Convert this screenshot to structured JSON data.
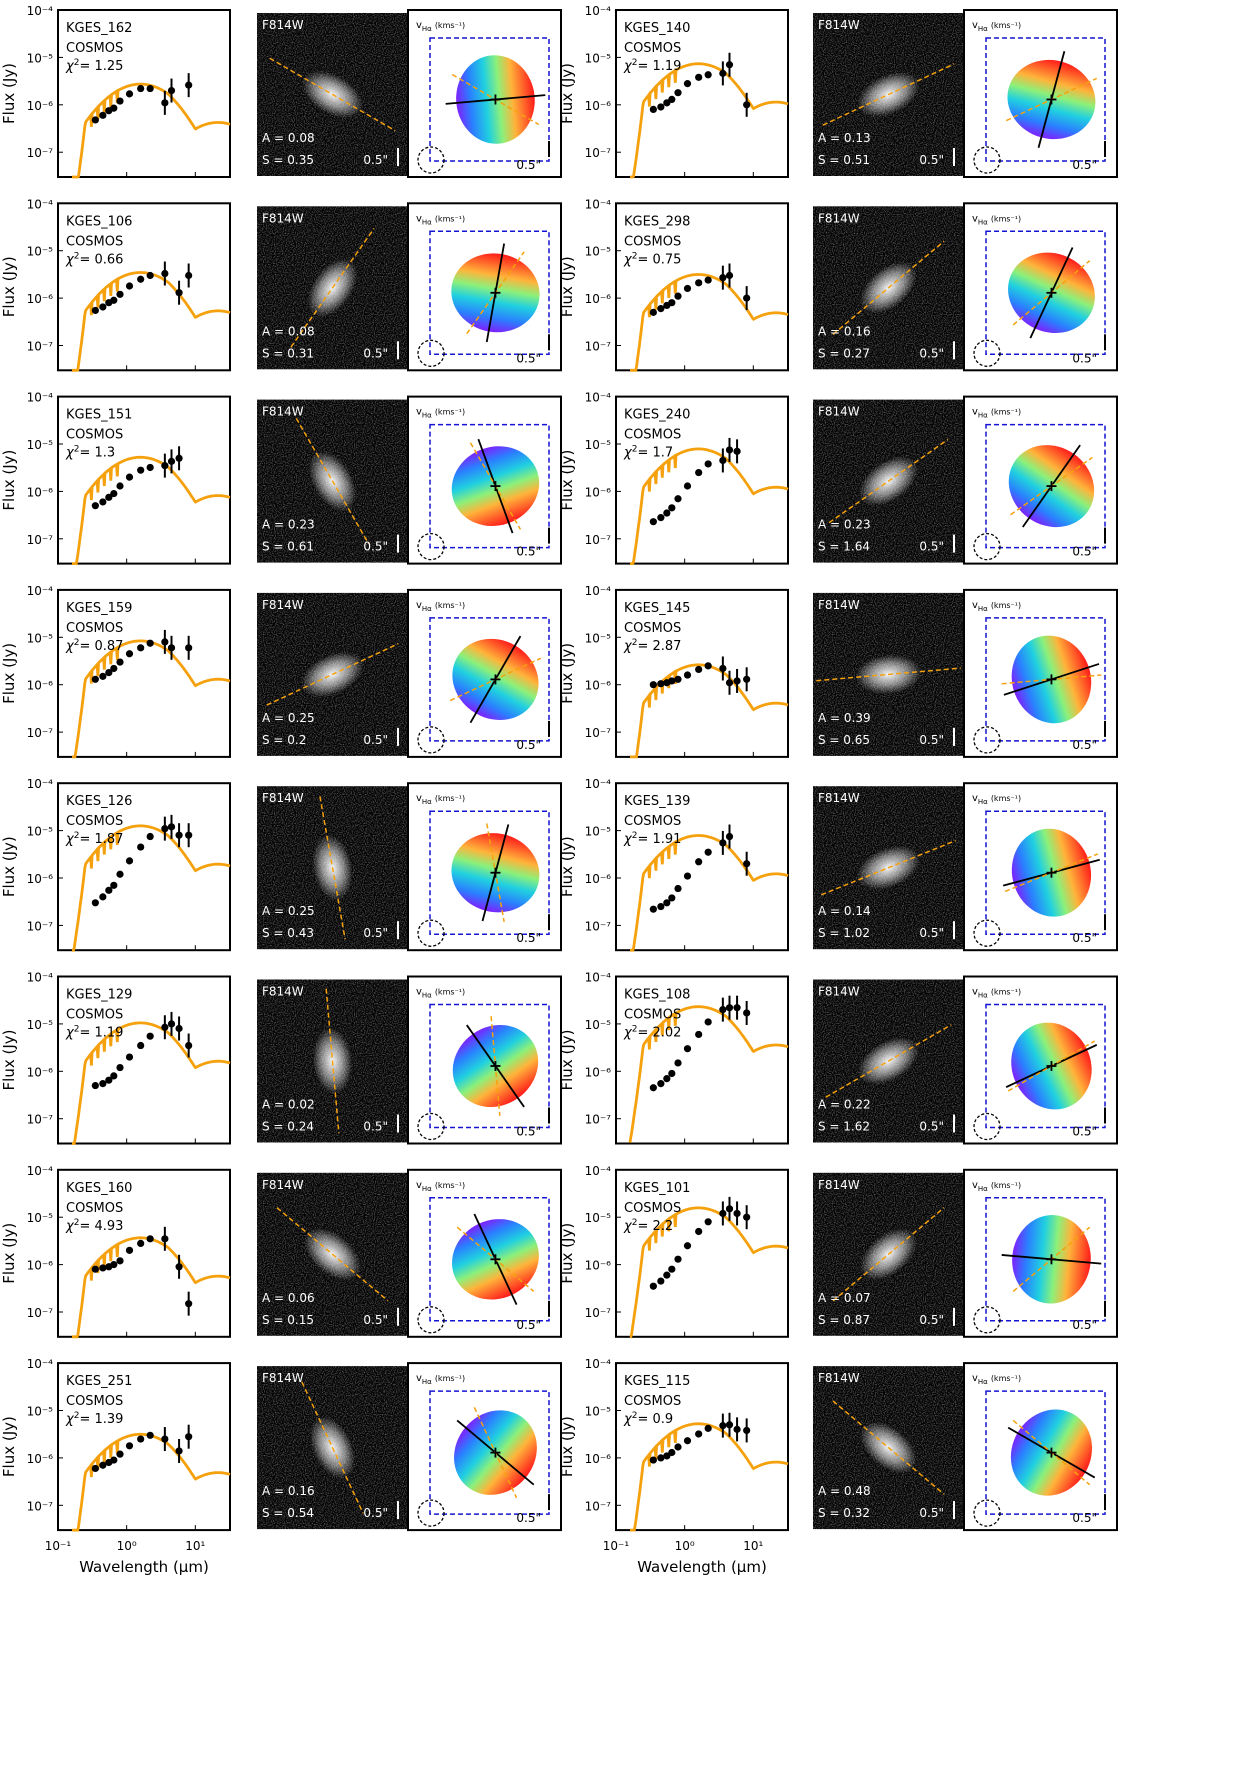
{
  "figure": {
    "y_axis_label": "Flux (Jy)",
    "x_axis_label": "Wavelength (μm)",
    "y_ticks": [
      "10⁻⁴",
      "10⁻⁵",
      "10⁻⁶",
      "10⁻⁷"
    ],
    "x_ticks": [
      "10⁻¹",
      "10⁰",
      "10¹"
    ],
    "image_filter_label": "F814W",
    "velocity_map_label": "v",
    "velocity_map_sub": "Hα",
    "velocity_map_units": "(kms⁻¹)",
    "scale_bar_label": "0.5\"",
    "chi2_prefix": "χ",
    "field_label": "COSMOS",
    "colors": {
      "sed_model": "#f5a10d",
      "photometry": "#000000",
      "velocity_box": "#1414d2",
      "axis_line": "#f5a10d",
      "kinematic_axis": "#000000"
    }
  },
  "chart_data": [
    {
      "type": "scatter",
      "id": "KGES_162",
      "field": "COSMOS",
      "chi2": "1.25",
      "A": "0.08",
      "S": "0.35",
      "morph_pa": -30,
      "kin_pa": 5,
      "phot": [
        [
          0.35,
          4.8e-07
        ],
        [
          0.45,
          6e-07
        ],
        [
          0.55,
          7.5e-07
        ],
        [
          0.65,
          8.5e-07
        ],
        [
          0.8,
          1.2e-06
        ],
        [
          1.1,
          1.7e-06
        ],
        [
          1.6,
          2.2e-06
        ],
        [
          2.2,
          2.2e-06
        ],
        [
          3.6,
          1.1e-06
        ],
        [
          4.5,
          2e-06
        ],
        [
          8,
          2.6e-06
        ]
      ]
    },
    {
      "type": "scatter",
      "id": "KGES_140",
      "field": "COSMOS",
      "chi2": "1.19",
      "A": "0.13",
      "S": "0.51",
      "morph_pa": 25,
      "kin_pa": 75,
      "phot": [
        [
          0.35,
          8e-07
        ],
        [
          0.45,
          9e-07
        ],
        [
          0.55,
          1.1e-06
        ],
        [
          0.65,
          1.3e-06
        ],
        [
          0.8,
          1.8e-06
        ],
        [
          1.1,
          2.8e-06
        ],
        [
          1.6,
          3.8e-06
        ],
        [
          2.2,
          4.3e-06
        ],
        [
          3.6,
          4.6e-06
        ],
        [
          4.5,
          7e-06
        ],
        [
          8,
          1e-06
        ]
      ]
    },
    {
      "type": "scatter",
      "id": "KGES_106",
      "field": "COSMOS",
      "chi2": "0.66",
      "A": "0.08",
      "S": "0.31",
      "morph_pa": 55,
      "kin_pa": 80,
      "phot": [
        [
          0.35,
          5.5e-07
        ],
        [
          0.45,
          6.5e-07
        ],
        [
          0.55,
          8e-07
        ],
        [
          0.65,
          9e-07
        ],
        [
          0.8,
          1.2e-06
        ],
        [
          1.1,
          1.8e-06
        ],
        [
          1.6,
          2.5e-06
        ],
        [
          2.2,
          3e-06
        ],
        [
          3.6,
          3.3e-06
        ],
        [
          5.8,
          1.3e-06
        ],
        [
          8,
          3e-06
        ]
      ]
    },
    {
      "type": "scatter",
      "id": "KGES_298",
      "field": "COSMOS",
      "chi2": "0.75",
      "A": "0.16",
      "S": "0.27",
      "morph_pa": 40,
      "kin_pa": 65,
      "phot": [
        [
          0.35,
          5e-07
        ],
        [
          0.45,
          6e-07
        ],
        [
          0.55,
          7e-07
        ],
        [
          0.65,
          8e-07
        ],
        [
          0.8,
          1.1e-06
        ],
        [
          1.1,
          1.6e-06
        ],
        [
          1.6,
          2.1e-06
        ],
        [
          2.2,
          2.4e-06
        ],
        [
          3.6,
          2.7e-06
        ],
        [
          4.5,
          3e-06
        ],
        [
          8,
          1e-06
        ]
      ]
    },
    {
      "type": "scatter",
      "id": "KGES_151",
      "field": "COSMOS",
      "chi2": "1.3",
      "A": "0.23",
      "S": "0.61",
      "morph_pa": -60,
      "kin_pa": -70,
      "phot": [
        [
          0.35,
          5e-07
        ],
        [
          0.45,
          6e-07
        ],
        [
          0.55,
          7.5e-07
        ],
        [
          0.65,
          9e-07
        ],
        [
          0.8,
          1.3e-06
        ],
        [
          1.1,
          2e-06
        ],
        [
          1.6,
          2.8e-06
        ],
        [
          2.2,
          3.2e-06
        ],
        [
          3.6,
          3.5e-06
        ],
        [
          4.5,
          4.3e-06
        ],
        [
          5.8,
          5e-06
        ]
      ]
    },
    {
      "type": "scatter",
      "id": "KGES_240",
      "field": "COSMOS",
      "chi2": "1.7",
      "A": "0.23",
      "S": "1.64",
      "morph_pa": 35,
      "kin_pa": 55,
      "phot": [
        [
          0.35,
          2.3e-07
        ],
        [
          0.45,
          2.8e-07
        ],
        [
          0.55,
          3.5e-07
        ],
        [
          0.65,
          4.5e-07
        ],
        [
          0.8,
          7e-07
        ],
        [
          1.1,
          1.3e-06
        ],
        [
          1.6,
          2.5e-06
        ],
        [
          2.2,
          3.8e-06
        ],
        [
          3.6,
          4.5e-06
        ],
        [
          4.5,
          7.5e-06
        ],
        [
          5.8,
          7e-06
        ]
      ]
    },
    {
      "type": "scatter",
      "id": "KGES_159",
      "field": "COSMOS",
      "chi2": "0.87",
      "A": "0.25",
      "S": "0.2",
      "morph_pa": 25,
      "kin_pa": 60,
      "phot": [
        [
          0.35,
          1.3e-06
        ],
        [
          0.45,
          1.5e-06
        ],
        [
          0.55,
          1.8e-06
        ],
        [
          0.65,
          2.2e-06
        ],
        [
          0.8,
          3e-06
        ],
        [
          1.1,
          4.5e-06
        ],
        [
          1.6,
          6e-06
        ],
        [
          2.2,
          7.5e-06
        ],
        [
          3.6,
          8e-06
        ],
        [
          4.5,
          6e-06
        ],
        [
          8,
          6e-06
        ]
      ]
    },
    {
      "type": "scatter",
      "id": "KGES_145",
      "field": "COSMOS",
      "chi2": "2.87",
      "A": "0.39",
      "S": "0.65",
      "morph_pa": 5,
      "kin_pa": 18,
      "phot": [
        [
          0.35,
          1e-06
        ],
        [
          0.45,
          1.05e-06
        ],
        [
          0.55,
          1.1e-06
        ],
        [
          0.65,
          1.2e-06
        ],
        [
          0.8,
          1.3e-06
        ],
        [
          1.1,
          1.6e-06
        ],
        [
          1.6,
          2.1e-06
        ],
        [
          2.2,
          2.5e-06
        ],
        [
          3.6,
          2.2e-06
        ],
        [
          4.5,
          1.1e-06
        ],
        [
          5.8,
          1.2e-06
        ],
        [
          8,
          1.3e-06
        ]
      ]
    },
    {
      "type": "scatter",
      "id": "KGES_126",
      "field": "COSMOS",
      "chi2": "1.87",
      "A": "0.25",
      "S": "0.43",
      "morph_pa": -80,
      "kin_pa": 75,
      "phot": [
        [
          0.35,
          3e-07
        ],
        [
          0.45,
          4e-07
        ],
        [
          0.55,
          5.5e-07
        ],
        [
          0.65,
          7e-07
        ],
        [
          0.8,
          1.2e-06
        ],
        [
          1.1,
          2.3e-06
        ],
        [
          1.6,
          4.5e-06
        ],
        [
          2.2,
          7.5e-06
        ],
        [
          3.6,
          1.1e-05
        ],
        [
          4.5,
          1.2e-05
        ],
        [
          5.8,
          8e-06
        ],
        [
          8,
          8e-06
        ]
      ]
    },
    {
      "type": "scatter",
      "id": "KGES_139",
      "field": "COSMOS",
      "chi2": "1.91",
      "A": "0.14",
      "S": "1.02",
      "morph_pa": 22,
      "kin_pa": 15,
      "phot": [
        [
          0.35,
          2.2e-07
        ],
        [
          0.45,
          2.5e-07
        ],
        [
          0.55,
          3e-07
        ],
        [
          0.65,
          3.8e-07
        ],
        [
          0.8,
          6e-07
        ],
        [
          1.1,
          1.1e-06
        ],
        [
          1.6,
          2.2e-06
        ],
        [
          2.2,
          3.5e-06
        ],
        [
          3.6,
          5.5e-06
        ],
        [
          4.5,
          7.5e-06
        ],
        [
          8,
          2e-06
        ]
      ]
    },
    {
      "type": "scatter",
      "id": "KGES_129",
      "field": "COSMOS",
      "chi2": "1.19",
      "A": "0.02",
      "S": "0.24",
      "morph_pa": -85,
      "kin_pa": -55,
      "phot": [
        [
          0.35,
          5e-07
        ],
        [
          0.45,
          5.5e-07
        ],
        [
          0.55,
          6.5e-07
        ],
        [
          0.65,
          8e-07
        ],
        [
          0.8,
          1.2e-06
        ],
        [
          1.1,
          2e-06
        ],
        [
          1.6,
          3.5e-06
        ],
        [
          2.2,
          5.5e-06
        ],
        [
          3.6,
          8.5e-06
        ],
        [
          4.5,
          1e-05
        ],
        [
          5.8,
          8e-06
        ],
        [
          8,
          3.5e-06
        ]
      ]
    },
    {
      "type": "scatter",
      "id": "KGES_108",
      "field": "COSMOS",
      "chi2": "2.02",
      "A": "0.22",
      "S": "1.62",
      "morph_pa": 30,
      "kin_pa": 25,
      "phot": [
        [
          0.35,
          4.5e-07
        ],
        [
          0.45,
          5.5e-07
        ],
        [
          0.55,
          7e-07
        ],
        [
          0.65,
          9e-07
        ],
        [
          0.8,
          1.5e-06
        ],
        [
          1.1,
          3e-06
        ],
        [
          1.6,
          6e-06
        ],
        [
          2.2,
          1.1e-05
        ],
        [
          3.6,
          2e-05
        ],
        [
          4.5,
          2.2e-05
        ],
        [
          5.8,
          2.2e-05
        ],
        [
          8,
          1.7e-05
        ]
      ]
    },
    {
      "type": "scatter",
      "id": "KGES_160",
      "field": "COSMOS",
      "chi2": "4.93",
      "A": "0.06",
      "S": "0.15",
      "morph_pa": -40,
      "kin_pa": -65,
      "phot": [
        [
          0.35,
          8e-07
        ],
        [
          0.45,
          8.5e-07
        ],
        [
          0.55,
          9e-07
        ],
        [
          0.65,
          1e-06
        ],
        [
          0.8,
          1.2e-06
        ],
        [
          1.1,
          2e-06
        ],
        [
          1.6,
          2.8e-06
        ],
        [
          2.2,
          3.5e-06
        ],
        [
          3.6,
          3.5e-06
        ],
        [
          5.8,
          9e-07
        ],
        [
          8,
          1.5e-07
        ]
      ]
    },
    {
      "type": "scatter",
      "id": "KGES_101",
      "field": "COSMOS",
      "chi2": "2.2",
      "A": "0.07",
      "S": "0.87",
      "morph_pa": 40,
      "kin_pa": -5,
      "phot": [
        [
          0.35,
          3.5e-07
        ],
        [
          0.45,
          4.5e-07
        ],
        [
          0.55,
          6e-07
        ],
        [
          0.65,
          8e-07
        ],
        [
          0.8,
          1.3e-06
        ],
        [
          1.1,
          2.5e-06
        ],
        [
          1.6,
          5e-06
        ],
        [
          2.2,
          8e-06
        ],
        [
          3.6,
          1.2e-05
        ],
        [
          4.5,
          1.5e-05
        ],
        [
          5.8,
          1.2e-05
        ],
        [
          8,
          1e-05
        ]
      ]
    },
    {
      "type": "scatter",
      "id": "KGES_251",
      "field": "COSMOS",
      "chi2": "1.39",
      "A": "0.16",
      "S": "0.54",
      "morph_pa": -65,
      "kin_pa": -40,
      "phot": [
        [
          0.35,
          6e-07
        ],
        [
          0.45,
          7e-07
        ],
        [
          0.55,
          8e-07
        ],
        [
          0.65,
          9e-07
        ],
        [
          0.8,
          1.2e-06
        ],
        [
          1.1,
          1.8e-06
        ],
        [
          1.6,
          2.5e-06
        ],
        [
          2.2,
          3e-06
        ],
        [
          3.6,
          2.5e-06
        ],
        [
          5.8,
          1.4e-06
        ],
        [
          8,
          2.8e-06
        ]
      ]
    },
    {
      "type": "scatter",
      "id": "KGES_115",
      "field": "COSMOS",
      "chi2": "0.9",
      "A": "0.48",
      "S": "0.32",
      "morph_pa": -40,
      "kin_pa": -30,
      "phot": [
        [
          0.35,
          9e-07
        ],
        [
          0.45,
          1e-06
        ],
        [
          0.55,
          1.1e-06
        ],
        [
          0.65,
          1.3e-06
        ],
        [
          0.8,
          1.7e-06
        ],
        [
          1.1,
          2.3e-06
        ],
        [
          1.6,
          3.2e-06
        ],
        [
          2.2,
          4.2e-06
        ],
        [
          3.6,
          4.8e-06
        ],
        [
          4.5,
          5e-06
        ],
        [
          5.8,
          4e-06
        ],
        [
          8,
          3.8e-06
        ]
      ]
    }
  ]
}
